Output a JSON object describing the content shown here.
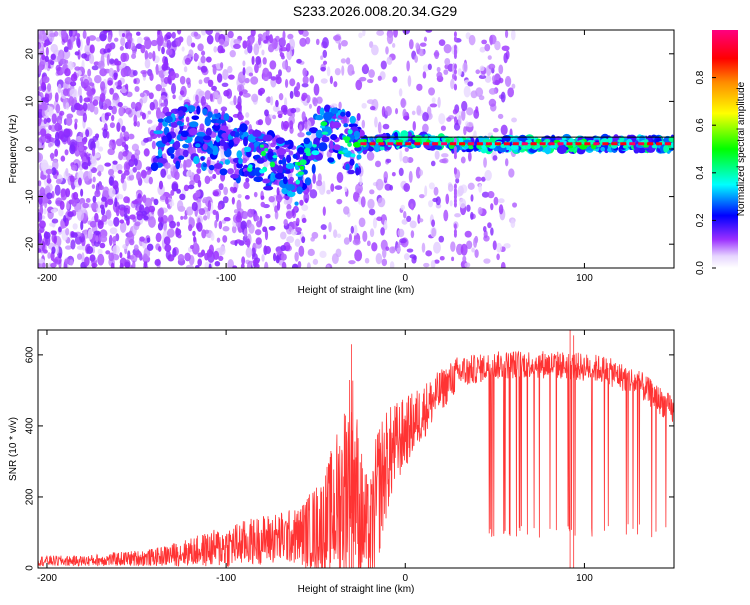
{
  "title": "S233.2026.008.20.34.G29",
  "chart_data": [
    {
      "type": "heatmap",
      "name": "spectrogram",
      "xlabel": "Height of straight line (km)",
      "ylabel": "Frequency (Hz)",
      "xlim": [
        -205,
        150
      ],
      "ylim": [
        -25,
        25
      ],
      "xticks": [
        -200,
        -100,
        0,
        100
      ],
      "yticks": [
        -20,
        -10,
        0,
        10,
        20
      ],
      "colorbar": {
        "label": "Normalized spectral amplitude",
        "range": [
          0,
          1
        ],
        "ticks": [
          0.0,
          0.2,
          0.4,
          0.6,
          0.8
        ],
        "tick_labels": [
          "0.0",
          "0.2",
          "0.4",
          "0.6",
          "0.8"
        ],
        "colors": [
          "#ffffff",
          "#e0c8ff",
          "#8a2be2",
          "#0000ff",
          "#00ffff",
          "#00ff00",
          "#ffff00",
          "#ff8c00",
          "#ff0000",
          "#ff0080"
        ]
      },
      "carrier_line": {
        "start_km": -25,
        "end_km": 150,
        "frequency_hz": 1.0,
        "color": "#000000"
      },
      "ridge": [
        {
          "x": -140,
          "y": 2,
          "amp": 0.25
        },
        {
          "x": -120,
          "y": 3,
          "amp": 0.3
        },
        {
          "x": -100,
          "y": 1,
          "amp": 0.3
        },
        {
          "x": -90,
          "y": -1,
          "amp": 0.3
        },
        {
          "x": -80,
          "y": -2,
          "amp": 0.35
        },
        {
          "x": -70,
          "y": -3,
          "amp": 0.35
        },
        {
          "x": -60,
          "y": -6,
          "amp": 0.35
        },
        {
          "x": -50,
          "y": 2,
          "amp": 0.35
        },
        {
          "x": -40,
          "y": 3,
          "amp": 0.4
        },
        {
          "x": -30,
          "y": 1,
          "amp": 0.45
        },
        {
          "x": -20,
          "y": 1,
          "amp": 0.9
        },
        {
          "x": 0,
          "y": 2,
          "amp": 0.9
        },
        {
          "x": 30,
          "y": 1,
          "amp": 0.9
        },
        {
          "x": 60,
          "y": 1,
          "amp": 0.9
        },
        {
          "x": 90,
          "y": 1,
          "amp": 0.9
        },
        {
          "x": 120,
          "y": 1,
          "amp": 0.9
        },
        {
          "x": 150,
          "y": 1,
          "amp": 0.9
        }
      ]
    },
    {
      "type": "line",
      "name": "snr",
      "xlabel": "Height of straight line (km)",
      "ylabel": "SNR (10 * v/v)",
      "xlim": [
        -205,
        150
      ],
      "ylim": [
        0,
        670
      ],
      "xticks": [
        -200,
        -100,
        0,
        100
      ],
      "yticks": [
        0,
        200,
        400,
        600
      ],
      "color": "#ff3333",
      "envelope": {
        "x": [
          -205,
          -180,
          -160,
          -140,
          -120,
          -100,
          -80,
          -60,
          -45,
          -35,
          -30,
          -25,
          -20,
          -15,
          -10,
          -5,
          0,
          10,
          20,
          30,
          40,
          50,
          70,
          90,
          110,
          130,
          150
        ],
        "mean": [
          20,
          20,
          25,
          30,
          45,
          60,
          80,
          90,
          120,
          200,
          300,
          150,
          80,
          220,
          300,
          350,
          380,
          440,
          500,
          550,
          560,
          570,
          575,
          570,
          560,
          520,
          440
        ],
        "spread": [
          15,
          15,
          20,
          25,
          40,
          60,
          70,
          80,
          150,
          250,
          300,
          200,
          150,
          200,
          150,
          120,
          100,
          80,
          60,
          50,
          40,
          40,
          40,
          40,
          40,
          40,
          40
        ]
      },
      "spikes": [
        630,
        670,
        655
      ]
    }
  ]
}
